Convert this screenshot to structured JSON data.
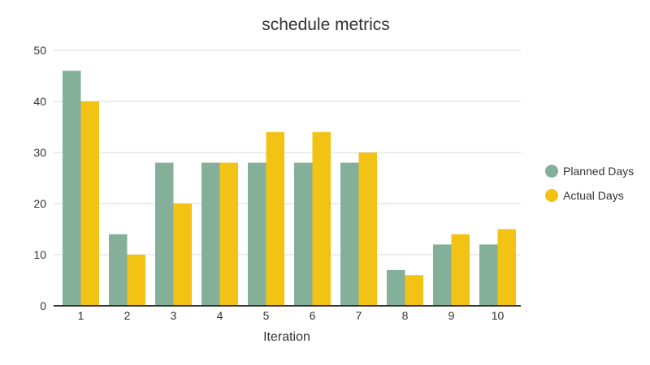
{
  "chart_data": {
    "type": "bar",
    "title": "schedule metrics",
    "xlabel": "Iteration",
    "ylabel": "",
    "categories": [
      "1",
      "2",
      "3",
      "4",
      "5",
      "6",
      "7",
      "8",
      "9",
      "10"
    ],
    "series": [
      {
        "name": "Planned Days",
        "color": "#84b09a",
        "values": [
          46,
          14,
          28,
          28,
          28,
          28,
          28,
          7,
          12,
          12
        ]
      },
      {
        "name": "Actual Days",
        "color": "#f2c314",
        "values": [
          40,
          10,
          20,
          28,
          34,
          34,
          30,
          6,
          14,
          15
        ]
      }
    ],
    "ylim": [
      0,
      50
    ],
    "yticks": [
      "0",
      "10",
      "20",
      "30",
      "40",
      "50"
    ],
    "grid": true,
    "legend_position": "right"
  }
}
